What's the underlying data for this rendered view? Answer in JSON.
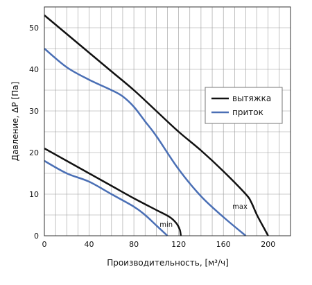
{
  "chart_data": {
    "type": "line",
    "xlabel": "Производительность, [м³/ч]",
    "ylabel": "Давление, ΔP [Па]",
    "xlim": [
      0,
      220
    ],
    "ylim": [
      0,
      55
    ],
    "x_ticks": [
      0,
      40,
      80,
      120,
      160,
      200
    ],
    "y_ticks": [
      0,
      10,
      20,
      30,
      40,
      50
    ],
    "x_tick_labels": [
      "0",
      "40",
      "80",
      "120",
      "160",
      "200"
    ],
    "y_tick_labels": [
      "0",
      "10",
      "20",
      "30",
      "40",
      "50"
    ],
    "grid": true,
    "legend_position": "right",
    "legend": [
      {
        "label": "вытяжка",
        "color": "#111111"
      },
      {
        "label": "приток",
        "color": "#4a6fb5"
      }
    ],
    "annotations": [
      {
        "text": "max",
        "x": 168,
        "y": 6.5
      },
      {
        "text": "min",
        "x": 103,
        "y": 2.2
      }
    ],
    "series": [
      {
        "name": "вытяжка",
        "mode": "max",
        "color": "#111111",
        "points": [
          [
            0,
            53
          ],
          [
            20,
            48.5
          ],
          [
            40,
            44
          ],
          [
            60,
            39.5
          ],
          [
            80,
            35
          ],
          [
            100,
            30
          ],
          [
            120,
            25
          ],
          [
            140,
            20.5
          ],
          [
            160,
            15.5
          ],
          [
            180,
            10
          ],
          [
            185,
            8
          ],
          [
            190,
            5
          ],
          [
            197,
            1.5
          ],
          [
            200,
            0
          ]
        ]
      },
      {
        "name": "приток",
        "mode": "max",
        "color": "#4a6fb5",
        "points": [
          [
            0,
            45
          ],
          [
            20,
            40.5
          ],
          [
            40,
            37.5
          ],
          [
            60,
            35
          ],
          [
            70,
            33.5
          ],
          [
            80,
            31
          ],
          [
            90,
            27.5
          ],
          [
            100,
            24
          ],
          [
            120,
            16
          ],
          [
            140,
            9.5
          ],
          [
            160,
            4.5
          ],
          [
            180,
            0
          ]
        ]
      },
      {
        "name": "вытяжка",
        "mode": "min",
        "color": "#111111",
        "points": [
          [
            0,
            21
          ],
          [
            20,
            18
          ],
          [
            40,
            15
          ],
          [
            60,
            12
          ],
          [
            80,
            9
          ],
          [
            100,
            6.2
          ],
          [
            112,
            4.5
          ],
          [
            118,
            3
          ],
          [
            121,
            1.5
          ],
          [
            122,
            0
          ]
        ]
      },
      {
        "name": "приток",
        "mode": "min",
        "color": "#4a6fb5",
        "points": [
          [
            0,
            18
          ],
          [
            20,
            15
          ],
          [
            40,
            13
          ],
          [
            60,
            10
          ],
          [
            80,
            7
          ],
          [
            90,
            5
          ],
          [
            100,
            2.5
          ],
          [
            110,
            0
          ]
        ]
      }
    ]
  }
}
